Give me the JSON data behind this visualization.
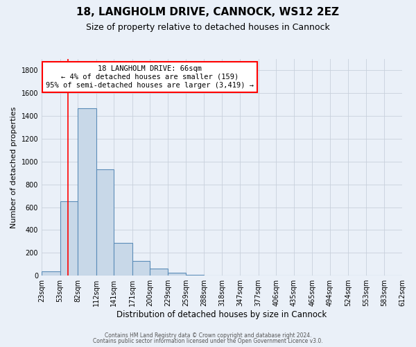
{
  "title1": "18, LANGHOLM DRIVE, CANNOCK, WS12 2EZ",
  "title2": "Size of property relative to detached houses in Cannock",
  "xlabel": "Distribution of detached houses by size in Cannock",
  "ylabel": "Number of detached properties",
  "bin_edges": [
    23,
    53,
    82,
    112,
    141,
    171,
    200,
    229,
    259,
    288,
    318,
    347,
    377,
    406,
    435,
    465,
    494,
    524,
    553,
    583,
    612
  ],
  "bin_labels": [
    "23sqm",
    "53sqm",
    "82sqm",
    "112sqm",
    "141sqm",
    "171sqm",
    "200sqm",
    "229sqm",
    "259sqm",
    "288sqm",
    "318sqm",
    "347sqm",
    "377sqm",
    "406sqm",
    "435sqm",
    "465sqm",
    "494sqm",
    "524sqm",
    "553sqm",
    "583sqm",
    "612sqm"
  ],
  "counts": [
    40,
    650,
    1470,
    935,
    290,
    130,
    65,
    25,
    10,
    0,
    0,
    0,
    0,
    0,
    0,
    0,
    0,
    0,
    0,
    0
  ],
  "bar_color": "#c8d8e8",
  "bar_edge_color": "#5b8db8",
  "property_line_x": 66,
  "property_line_color": "red",
  "annotation_title": "18 LANGHOLM DRIVE: 66sqm",
  "annotation_line1": "← 4% of detached houses are smaller (159)",
  "annotation_line2": "95% of semi-detached houses are larger (3,419) →",
  "annotation_box_color": "white",
  "annotation_box_edge_color": "red",
  "ylim": [
    0,
    1900
  ],
  "yticks": [
    0,
    200,
    400,
    600,
    800,
    1000,
    1200,
    1400,
    1600,
    1800
  ],
  "footer1": "Contains HM Land Registry data © Crown copyright and database right 2024.",
  "footer2": "Contains public sector information licensed under the Open Government Licence v3.0.",
  "background_color": "#eaf0f8",
  "grid_color": "#c8d0dc",
  "title1_fontsize": 11,
  "title2_fontsize": 9,
  "ylabel_fontsize": 8,
  "xlabel_fontsize": 8.5,
  "tick_fontsize": 7,
  "annotation_fontsize": 7.5,
  "footer_fontsize": 5.5
}
